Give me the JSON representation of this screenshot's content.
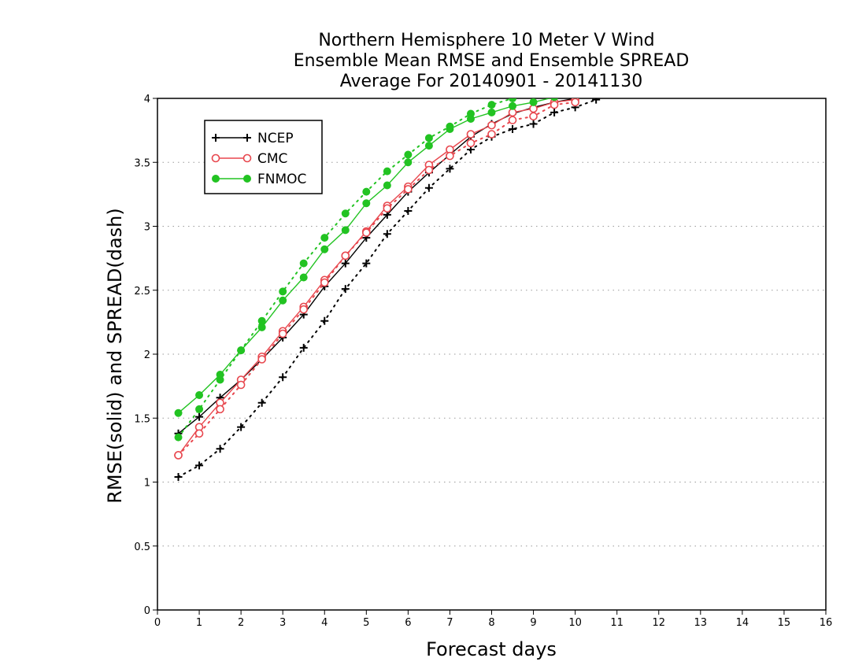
{
  "chart_data": {
    "type": "line",
    "title": [
      "Northern Hemisphere 10 Meter V Wind",
      "Ensemble Mean RMSE and Ensemble SPREAD",
      "Average For 20140901 - 20141130"
    ],
    "xlabel": "Forecast days",
    "ylabel": "RMSE(solid) and SPREAD(dash)",
    "xlim": [
      0,
      16
    ],
    "ylim": [
      0,
      4
    ],
    "xticks": [
      0,
      1,
      2,
      3,
      4,
      5,
      6,
      7,
      8,
      9,
      10,
      11,
      12,
      13,
      14,
      15,
      16
    ],
    "yticks": [
      0,
      0.5,
      1,
      1.5,
      2,
      2.5,
      3,
      3.5,
      4
    ],
    "grid": "horizontal-dotted",
    "legend_position": "top-left",
    "x": [
      0.5,
      1,
      1.5,
      2,
      2.5,
      3,
      3.5,
      4,
      4.5,
      5,
      5.5,
      6,
      6.5,
      7,
      7.5,
      8,
      8.5,
      9,
      9.5,
      10,
      10.5
    ],
    "series": [
      {
        "name": "NCEP",
        "color": "#000000",
        "marker": "plus",
        "rmse": [
          1.38,
          1.51,
          1.66,
          1.8,
          1.96,
          2.13,
          2.31,
          2.53,
          2.71,
          2.91,
          3.09,
          3.27,
          3.42,
          3.56,
          3.7,
          3.8,
          3.88,
          3.93,
          3.97,
          4.0,
          4.02
        ],
        "spread": [
          1.04,
          1.13,
          1.26,
          1.43,
          1.62,
          1.82,
          2.05,
          2.26,
          2.51,
          2.71,
          2.94,
          3.12,
          3.3,
          3.45,
          3.6,
          3.7,
          3.76,
          3.8,
          3.89,
          3.93,
          3.99
        ]
      },
      {
        "name": "CMC",
        "color": "#e8474e",
        "marker": "circle-open",
        "rmse": [
          1.21,
          1.43,
          1.62,
          1.8,
          1.98,
          2.18,
          2.37,
          2.58,
          2.77,
          2.96,
          3.16,
          3.31,
          3.48,
          3.6,
          3.72,
          3.79,
          3.89,
          3.92,
          3.97,
          3.99
        ],
        "spread": [
          1.21,
          1.38,
          1.57,
          1.76,
          1.96,
          2.16,
          2.35,
          2.56,
          2.77,
          2.95,
          3.14,
          3.29,
          3.44,
          3.55,
          3.65,
          3.72,
          3.83,
          3.86,
          3.95,
          3.97
        ]
      },
      {
        "name": "FNMOC",
        "color": "#22c322",
        "marker": "circle-filled",
        "rmse": [
          1.54,
          1.68,
          1.84,
          2.03,
          2.21,
          2.42,
          2.6,
          2.82,
          2.97,
          3.18,
          3.32,
          3.5,
          3.63,
          3.76,
          3.84,
          3.89,
          3.94,
          3.97,
          4.01,
          4.03
        ],
        "spread": [
          1.35,
          1.57,
          1.8,
          2.03,
          2.26,
          2.49,
          2.71,
          2.91,
          3.1,
          3.27,
          3.43,
          3.56,
          3.69,
          3.78,
          3.88,
          3.95,
          4.0,
          4.03,
          4.05
        ]
      }
    ]
  }
}
